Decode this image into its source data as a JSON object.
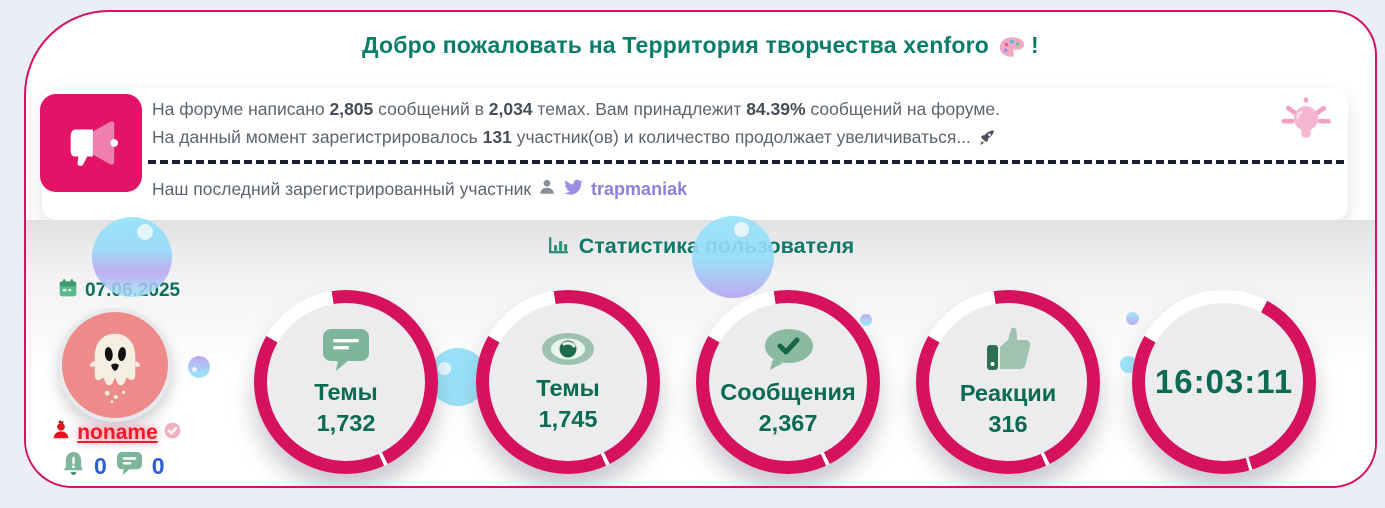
{
  "colors": {
    "accent_crimson": "#d6115e",
    "megaphone_pink": "#e31368",
    "title_teal": "#0a7d69",
    "stat_green": "#0b6b4f",
    "icon_sage": "#7eb69c",
    "body_gray": "#5d646d",
    "member_purple": "#8c82de",
    "counter_blue": "#2d5fd2",
    "name_red": "#ee1b24",
    "page_bg": "#e9eef8",
    "bubble_cyan": "#8fe0f9",
    "bubble_purple": "#b7a3f1"
  },
  "header": {
    "title": "Добро пожаловать на Территория творчества xenforo",
    "title_suffix": "!"
  },
  "notice": {
    "line1": [
      {
        "t": "На форуме написано "
      },
      {
        "t": "2,805",
        "b": true
      },
      {
        "t": " сообщений в "
      },
      {
        "t": "2,034",
        "b": true
      },
      {
        "t": " темах. Вам принадлежит "
      },
      {
        "t": "84.39%",
        "b": true
      },
      {
        "t": " сообщений на форуме."
      }
    ],
    "line2": [
      {
        "t": "На данный момент зарегистрировалось "
      },
      {
        "t": "131",
        "b": true
      },
      {
        "t": " участник(ов) и количество продолжает увеличиваться... "
      }
    ],
    "last_member_label": "Наш последний зарегистрированный участник",
    "last_member_name": "trapmaniak"
  },
  "stats": {
    "heading": "Статистика пользователя",
    "date": "07.06.2025",
    "username": "noname",
    "counters": [
      {
        "icon": "bell-alert-icon",
        "value": "0"
      },
      {
        "icon": "chat-icon",
        "value": "0"
      }
    ],
    "rings": [
      {
        "icon": "comment-icon",
        "label": "Темы",
        "value": "1,732"
      },
      {
        "icon": "eye-icon",
        "label": "Темы",
        "value": "1,745"
      },
      {
        "icon": "check-bubble-icon",
        "label": "Сообщения",
        "value": "2,367"
      },
      {
        "icon": "thumbs-up-icon",
        "label": "Реакции",
        "value": "316"
      },
      {
        "icon": "clock",
        "label": "",
        "value": "16:03:11"
      }
    ]
  }
}
